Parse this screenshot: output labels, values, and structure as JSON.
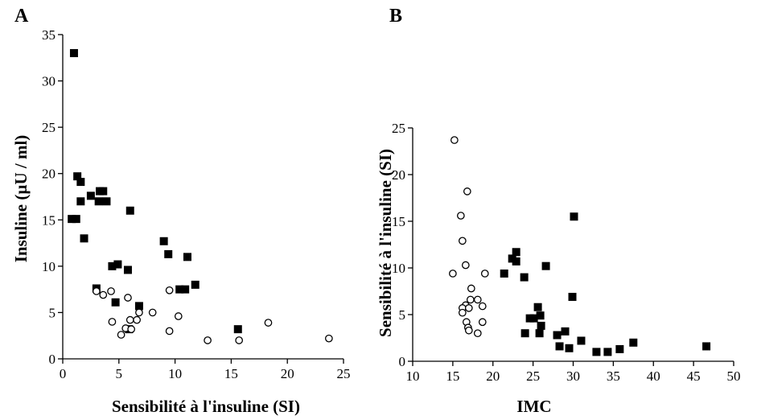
{
  "chart_data": [
    {
      "type": "scatter",
      "panel": "A",
      "title": "",
      "xlabel": "Sensibilité à l'insuline (SI)",
      "ylabel": "Insuline (µU / ml)",
      "xlim": [
        0,
        25
      ],
      "ylim": [
        0,
        35
      ],
      "xticks": [
        0,
        5,
        10,
        15,
        20,
        25
      ],
      "yticks": [
        0,
        5,
        10,
        15,
        20,
        25,
        30,
        35
      ],
      "grid": false,
      "legend": "none",
      "series": [
        {
          "marker": "filled-square",
          "color": "#000000",
          "points": [
            [
              1.0,
              33
            ],
            [
              1.3,
              19.7
            ],
            [
              1.6,
              19.1
            ],
            [
              2.5,
              17.6
            ],
            [
              3.3,
              18.1
            ],
            [
              3.6,
              18.1
            ],
            [
              3.2,
              17.0
            ],
            [
              3.9,
              17.0
            ],
            [
              1.6,
              17.0
            ],
            [
              0.8,
              15.1
            ],
            [
              1.2,
              15.1
            ],
            [
              1.9,
              13.0
            ],
            [
              6.0,
              16.0
            ],
            [
              4.4,
              10.0
            ],
            [
              4.9,
              10.2
            ],
            [
              5.8,
              9.6
            ],
            [
              9.0,
              12.7
            ],
            [
              9.4,
              11.3
            ],
            [
              11.1,
              11.0
            ],
            [
              10.4,
              7.5
            ],
            [
              10.9,
              7.5
            ],
            [
              11.8,
              8.0
            ],
            [
              3.0,
              7.6
            ],
            [
              4.7,
              6.1
            ],
            [
              6.8,
              5.7
            ],
            [
              15.6,
              3.2
            ],
            [
              5.9,
              3.2
            ]
          ]
        },
        {
          "marker": "open-circle",
          "color": "#000000",
          "points": [
            [
              3.0,
              7.3
            ],
            [
              3.6,
              6.9
            ],
            [
              4.3,
              7.3
            ],
            [
              5.8,
              6.6
            ],
            [
              9.5,
              7.4
            ],
            [
              6.8,
              5.0
            ],
            [
              8.0,
              5.0
            ],
            [
              4.4,
              4.0
            ],
            [
              6.0,
              4.2
            ],
            [
              6.6,
              4.2
            ],
            [
              10.3,
              4.6
            ],
            [
              5.6,
              3.3
            ],
            [
              6.1,
              3.2
            ],
            [
              5.2,
              2.6
            ],
            [
              9.5,
              3.0
            ],
            [
              12.9,
              2.0
            ],
            [
              15.7,
              2.0
            ],
            [
              18.3,
              3.9
            ],
            [
              23.7,
              2.2
            ]
          ]
        }
      ]
    },
    {
      "type": "scatter",
      "panel": "B",
      "title": "",
      "xlabel": "IMC",
      "ylabel": "Sensibilité à l'insuline (SI)",
      "xlim": [
        10,
        50
      ],
      "ylim": [
        0,
        25
      ],
      "xticks": [
        10,
        15,
        20,
        25,
        30,
        35,
        40,
        45,
        50
      ],
      "yticks": [
        0,
        5,
        10,
        15,
        20,
        25
      ],
      "grid": false,
      "legend": "none",
      "series": [
        {
          "marker": "open-circle",
          "color": "#000000",
          "points": [
            [
              15.2,
              23.7
            ],
            [
              16.8,
              18.2
            ],
            [
              16.0,
              15.6
            ],
            [
              16.2,
              12.9
            ],
            [
              16.6,
              10.3
            ],
            [
              15.0,
              9.4
            ],
            [
              19.0,
              9.4
            ],
            [
              17.3,
              7.8
            ],
            [
              16.6,
              6.0
            ],
            [
              17.2,
              6.6
            ],
            [
              18.1,
              6.6
            ],
            [
              16.2,
              5.7
            ],
            [
              17.0,
              5.7
            ],
            [
              18.7,
              5.9
            ],
            [
              16.2,
              5.2
            ],
            [
              16.7,
              4.2
            ],
            [
              18.7,
              4.2
            ],
            [
              16.9,
              3.6
            ],
            [
              18.1,
              3.0
            ],
            [
              17.0,
              3.3
            ]
          ]
        },
        {
          "marker": "filled-square",
          "color": "#000000",
          "points": [
            [
              21.4,
              9.4
            ],
            [
              22.4,
              11.0
            ],
            [
              22.9,
              11.7
            ],
            [
              22.9,
              10.7
            ],
            [
              23.9,
              9.0
            ],
            [
              26.6,
              10.2
            ],
            [
              30.1,
              15.5
            ],
            [
              29.9,
              6.9
            ],
            [
              24.6,
              4.6
            ],
            [
              25.1,
              4.6
            ],
            [
              25.6,
              5.8
            ],
            [
              25.9,
              4.9
            ],
            [
              24.0,
              3.0
            ],
            [
              25.8,
              3.0
            ],
            [
              26.0,
              3.8
            ],
            [
              28.0,
              2.8
            ],
            [
              29.0,
              3.2
            ],
            [
              28.3,
              1.6
            ],
            [
              29.5,
              1.4
            ],
            [
              31.0,
              2.2
            ],
            [
              32.9,
              1.0
            ],
            [
              34.3,
              1.0
            ],
            [
              35.8,
              1.3
            ],
            [
              37.5,
              2.0
            ],
            [
              46.6,
              1.6
            ]
          ]
        }
      ]
    }
  ]
}
